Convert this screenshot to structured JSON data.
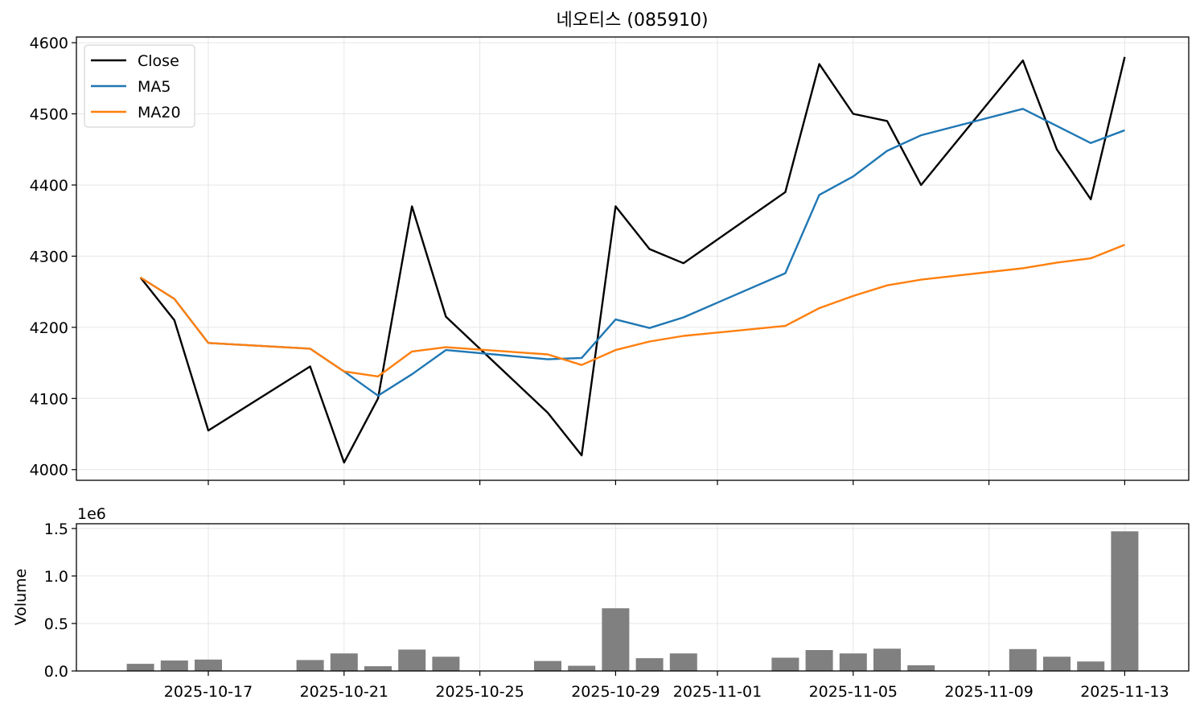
{
  "title": "네오티스 (085910)",
  "chart_data": [
    {
      "type": "line",
      "title": "네오티스 (085910)",
      "ylim": [
        3985,
        4608
      ],
      "yticks": [
        4000,
        4100,
        4200,
        4300,
        4400,
        4500,
        4600
      ],
      "grid": true,
      "legend": "top-left",
      "x": [
        "2025-10-15",
        "2025-10-16",
        "2025-10-17",
        "2025-10-20",
        "2025-10-21",
        "2025-10-22",
        "2025-10-23",
        "2025-10-24",
        "2025-10-27",
        "2025-10-28",
        "2025-10-29",
        "2025-10-30",
        "2025-10-31",
        "2025-11-03",
        "2025-11-04",
        "2025-11-05",
        "2025-11-06",
        "2025-11-07",
        "2025-11-10",
        "2025-11-11",
        "2025-11-12",
        "2025-11-13"
      ],
      "series": [
        {
          "name": "Close",
          "color": "#000000",
          "values": [
            4270,
            4210,
            4055,
            4145,
            4010,
            4100,
            4370,
            4215,
            4080,
            4020,
            4370,
            4310,
            4290,
            4390,
            4570,
            4500,
            4490,
            4400,
            4575,
            4450,
            4380,
            4580
          ]
        },
        {
          "name": "MA5",
          "color": "#1f77b4",
          "values": [
            4270,
            4240,
            4178,
            4170,
            4138,
            4104,
            4134,
            4168,
            4155,
            4157,
            4211,
            4199,
            4214,
            4276,
            4386,
            4412,
            4448,
            4470,
            4507,
            4483,
            4459,
            4477
          ]
        },
        {
          "name": "MA20",
          "color": "#ff7f0e",
          "values": [
            4270,
            4240,
            4178,
            4170,
            4138,
            4131,
            4166,
            4172,
            4162,
            4147,
            4168,
            4180,
            4188,
            4202,
            4227,
            4244,
            4259,
            4267,
            4283,
            4291,
            4297,
            4316
          ]
        }
      ]
    },
    {
      "type": "bar",
      "ylabel": "Volume",
      "scale_label": "1e6",
      "ylim": [
        0,
        1.55
      ],
      "yticks": [
        0.0,
        0.5,
        1.0,
        1.5
      ],
      "ytick_labels": [
        "0.0",
        "0.5",
        "1.0",
        "1.5"
      ],
      "grid": true,
      "color": "#808080",
      "x": [
        "2025-10-15",
        "2025-10-16",
        "2025-10-17",
        "2025-10-20",
        "2025-10-21",
        "2025-10-22",
        "2025-10-23",
        "2025-10-24",
        "2025-10-27",
        "2025-10-28",
        "2025-10-29",
        "2025-10-30",
        "2025-10-31",
        "2025-11-03",
        "2025-11-04",
        "2025-11-05",
        "2025-11-06",
        "2025-11-07",
        "2025-11-10",
        "2025-11-11",
        "2025-11-12",
        "2025-11-13"
      ],
      "values": [
        0.075,
        0.11,
        0.12,
        0.115,
        0.185,
        0.05,
        0.225,
        0.15,
        0.105,
        0.055,
        0.66,
        0.135,
        0.185,
        0.14,
        0.22,
        0.185,
        0.235,
        0.06,
        0.23,
        0.15,
        0.1,
        1.47
      ],
      "xticks": [
        "2025-10-17",
        "2025-10-21",
        "2025-10-25",
        "2025-10-29",
        "2025-11-01",
        "2025-11-05",
        "2025-11-09",
        "2025-11-13"
      ]
    }
  ]
}
